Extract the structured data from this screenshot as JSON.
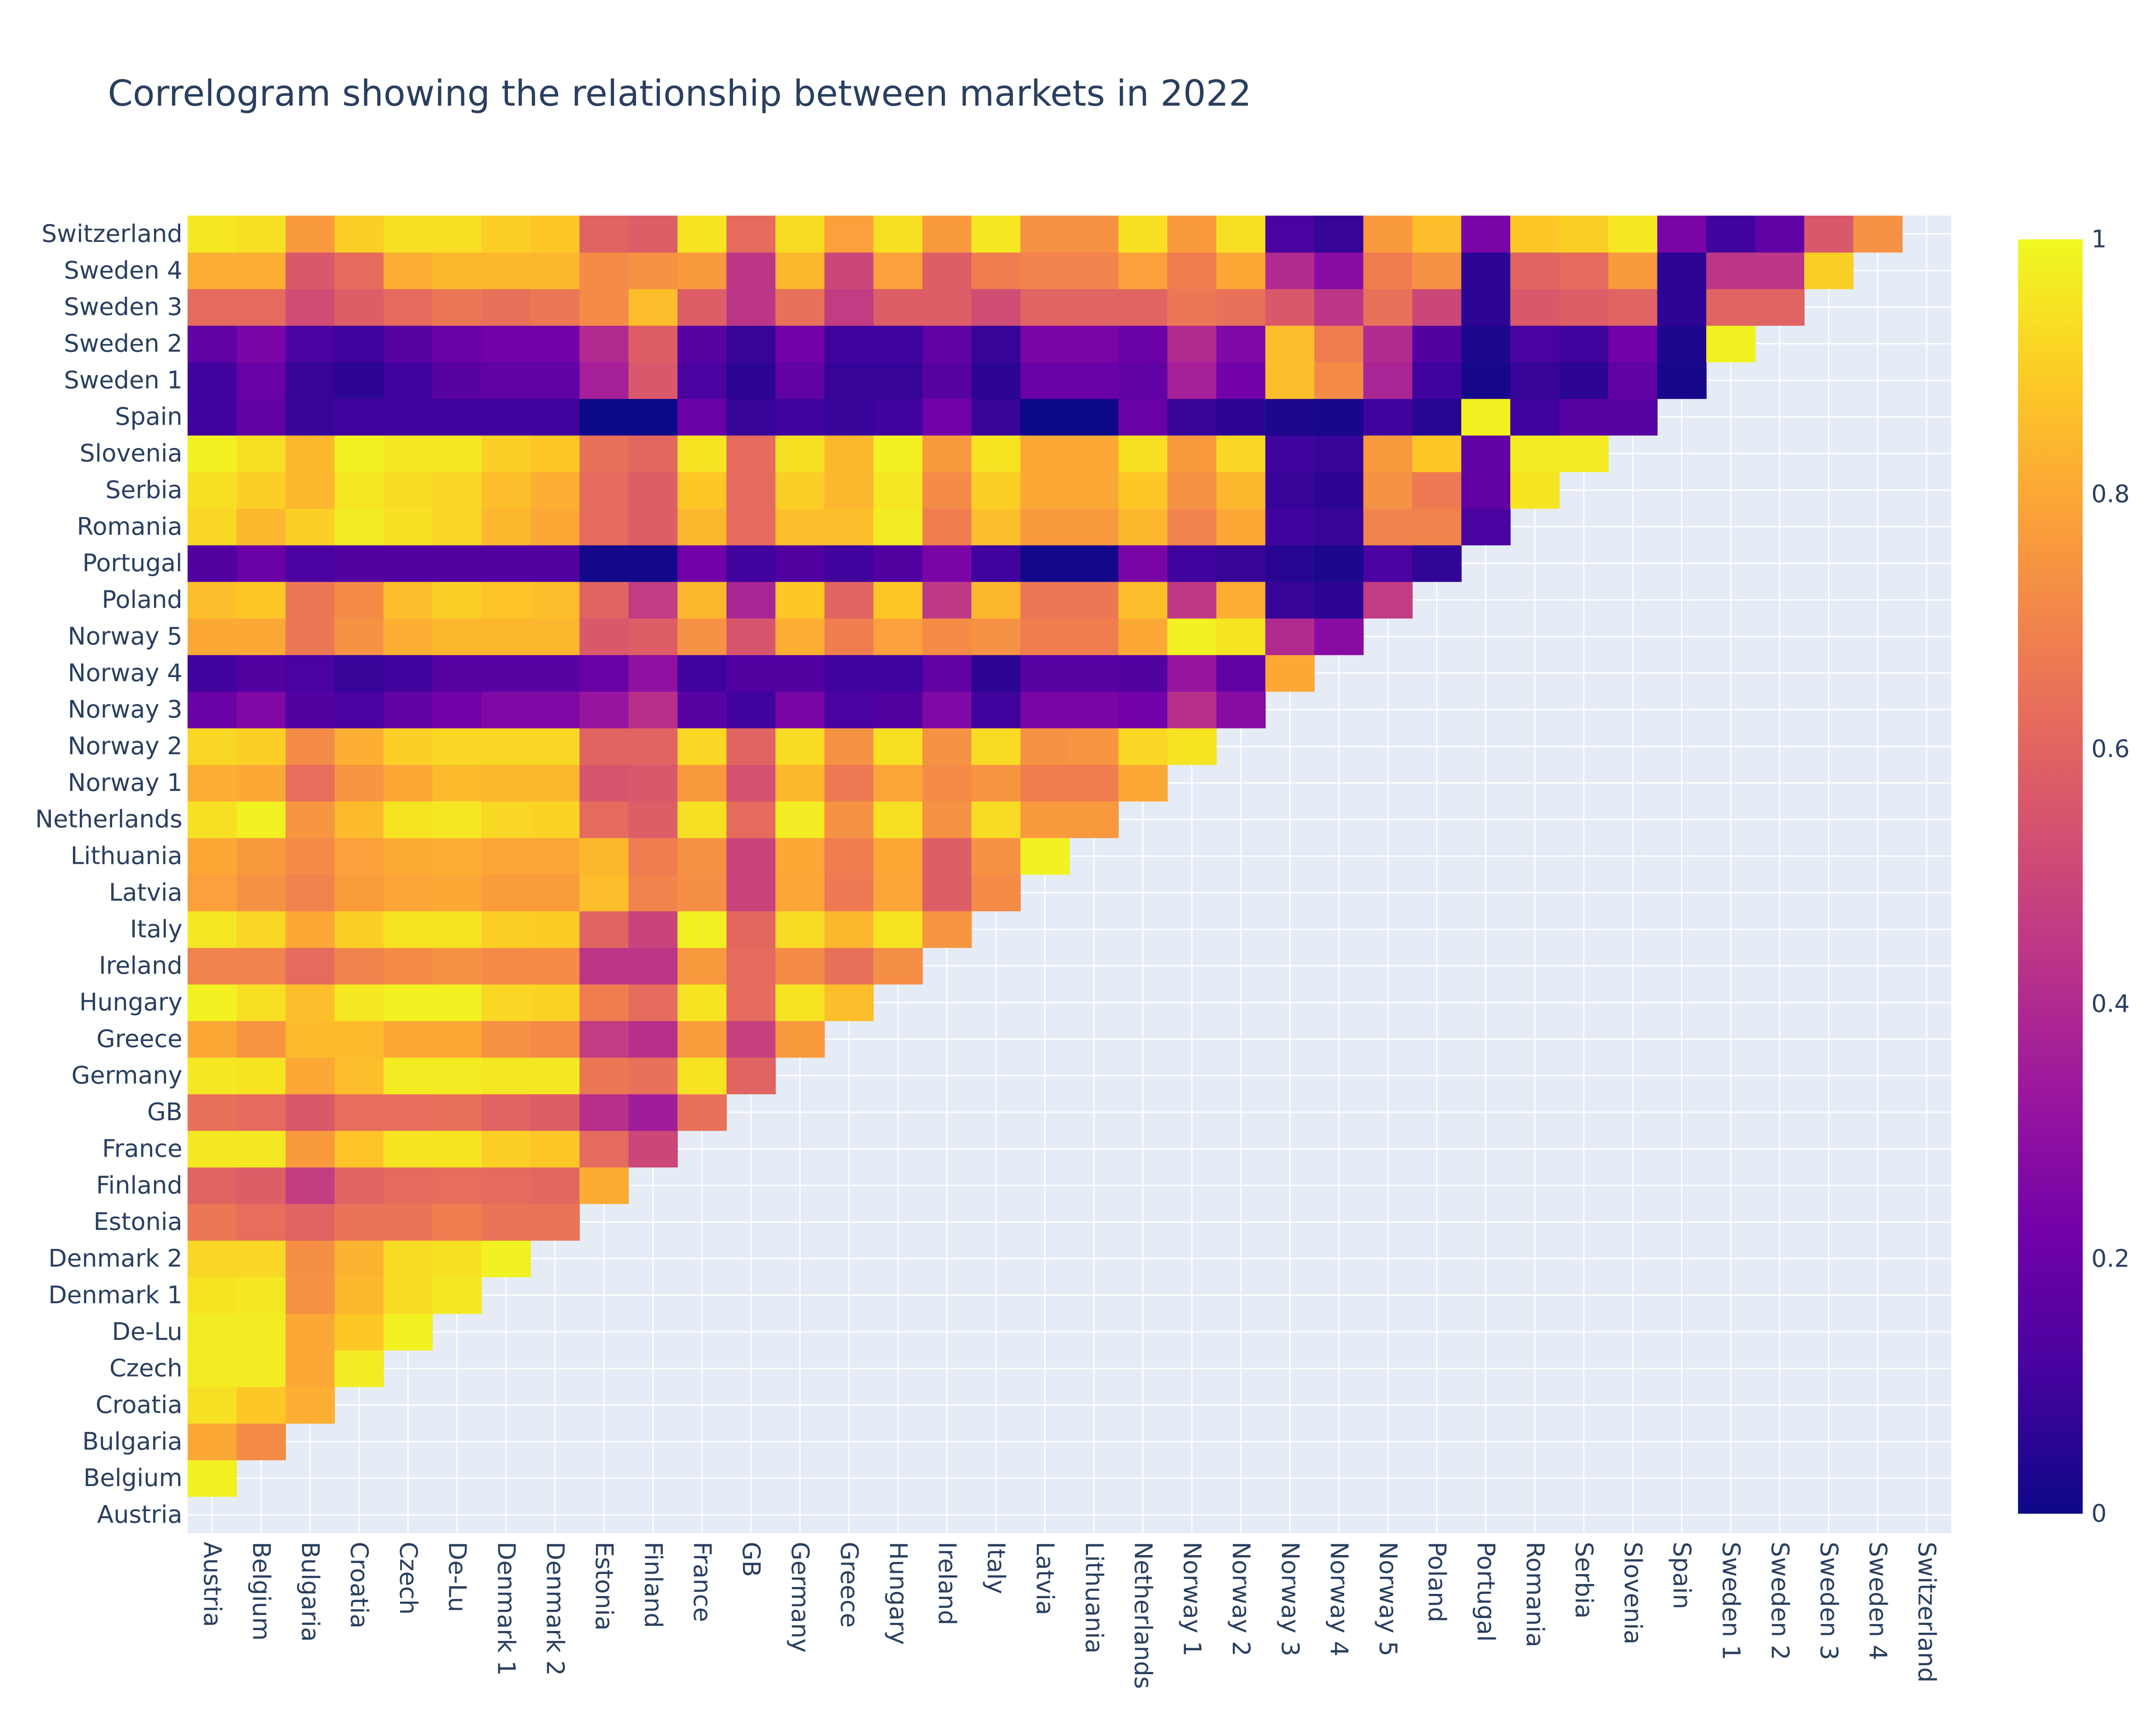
{
  "chart_data": {
    "type": "heatmap",
    "title": "Correlogram showing the relationship between markets in 2022",
    "categories": [
      "Austria",
      "Belgium",
      "Bulgaria",
      "Croatia",
      "Czech",
      "De-Lu",
      "Denmark 1",
      "Denmark 2",
      "Estonia",
      "Finland",
      "France",
      "GB",
      "Germany",
      "Greece",
      "Hungary",
      "Ireland",
      "Italy",
      "Latvia",
      "Lithuania",
      "Netherlands",
      "Norway 1",
      "Norway 2",
      "Norway 3",
      "Norway 4",
      "Norway 5",
      "Poland",
      "Portugal",
      "Romania",
      "Serbia",
      "Slovenia",
      "Spain",
      "Sweden 1",
      "Sweden 2",
      "Sweden 3",
      "Sweden 4",
      "Switzerland"
    ],
    "colorscale": "plasma",
    "zlim": [
      0,
      1
    ],
    "colorbar_ticks": [
      0,
      0.2,
      0.4,
      0.6,
      0.8,
      1
    ],
    "colorbar_tick_labels": [
      "0",
      "0.2",
      "0.4",
      "0.6",
      "0.8",
      "1"
    ],
    "lower_triangle_only": true,
    "rows": [
      [],
      [
        0.98
      ],
      [
        0.8,
        0.72
      ],
      [
        0.94,
        0.88,
        0.82
      ],
      [
        0.97,
        0.97,
        0.8,
        0.97
      ],
      [
        0.97,
        0.97,
        0.8,
        0.88,
        0.98
      ],
      [
        0.95,
        0.96,
        0.74,
        0.84,
        0.93,
        0.96
      ],
      [
        0.92,
        0.92,
        0.73,
        0.83,
        0.93,
        0.94,
        0.98
      ],
      [
        0.66,
        0.63,
        0.6,
        0.65,
        0.65,
        0.68,
        0.65,
        0.65
      ],
      [
        0.6,
        0.58,
        0.47,
        0.6,
        0.62,
        0.63,
        0.62,
        0.61,
        0.81
      ],
      [
        0.96,
        0.96,
        0.76,
        0.87,
        0.95,
        0.95,
        0.9,
        0.88,
        0.62,
        0.5
      ],
      [
        0.64,
        0.62,
        0.56,
        0.63,
        0.63,
        0.64,
        0.6,
        0.58,
        0.42,
        0.35,
        0.64
      ],
      [
        0.96,
        0.95,
        0.8,
        0.86,
        0.97,
        0.97,
        0.96,
        0.96,
        0.66,
        0.64,
        0.95,
        0.6
      ],
      [
        0.8,
        0.75,
        0.85,
        0.85,
        0.8,
        0.8,
        0.74,
        0.72,
        0.46,
        0.42,
        0.77,
        0.48,
        0.76
      ],
      [
        0.98,
        0.94,
        0.86,
        0.96,
        0.98,
        0.98,
        0.92,
        0.91,
        0.68,
        0.62,
        0.95,
        0.62,
        0.95,
        0.86
      ],
      [
        0.7,
        0.7,
        0.62,
        0.7,
        0.72,
        0.74,
        0.72,
        0.72,
        0.44,
        0.44,
        0.76,
        0.62,
        0.72,
        0.64,
        0.73
      ],
      [
        0.96,
        0.92,
        0.8,
        0.9,
        0.95,
        0.95,
        0.9,
        0.89,
        0.6,
        0.49,
        0.98,
        0.61,
        0.93,
        0.84,
        0.95,
        0.75
      ],
      [
        0.78,
        0.74,
        0.7,
        0.77,
        0.79,
        0.8,
        0.77,
        0.77,
        0.86,
        0.7,
        0.73,
        0.49,
        0.79,
        0.67,
        0.79,
        0.58,
        0.72
      ],
      [
        0.8,
        0.76,
        0.72,
        0.78,
        0.81,
        0.82,
        0.79,
        0.79,
        0.84,
        0.68,
        0.74,
        0.49,
        0.8,
        0.68,
        0.8,
        0.58,
        0.74,
        0.98
      ],
      [
        0.94,
        0.98,
        0.75,
        0.85,
        0.95,
        0.96,
        0.92,
        0.91,
        0.62,
        0.58,
        0.94,
        0.62,
        0.97,
        0.74,
        0.94,
        0.74,
        0.93,
        0.76,
        0.76
      ],
      [
        0.82,
        0.8,
        0.63,
        0.75,
        0.8,
        0.85,
        0.84,
        0.84,
        0.55,
        0.56,
        0.76,
        0.54,
        0.84,
        0.67,
        0.79,
        0.72,
        0.75,
        0.68,
        0.68,
        0.8
      ],
      [
        0.92,
        0.9,
        0.72,
        0.82,
        0.9,
        0.92,
        0.92,
        0.92,
        0.6,
        0.6,
        0.92,
        0.6,
        0.93,
        0.74,
        0.94,
        0.74,
        0.93,
        0.74,
        0.75,
        0.92,
        0.95
      ],
      [
        0.2,
        0.26,
        0.14,
        0.12,
        0.18,
        0.22,
        0.26,
        0.26,
        0.32,
        0.42,
        0.16,
        0.1,
        0.24,
        0.12,
        0.14,
        0.26,
        0.1,
        0.24,
        0.24,
        0.22,
        0.42,
        0.28
      ],
      [
        0.1,
        0.14,
        0.12,
        0.08,
        0.1,
        0.16,
        0.16,
        0.16,
        0.2,
        0.3,
        0.1,
        0.14,
        0.14,
        0.1,
        0.1,
        0.18,
        0.06,
        0.16,
        0.16,
        0.14,
        0.32,
        0.18,
        0.8
      ],
      [
        0.8,
        0.8,
        0.66,
        0.74,
        0.82,
        0.84,
        0.84,
        0.84,
        0.56,
        0.58,
        0.74,
        0.55,
        0.82,
        0.68,
        0.78,
        0.72,
        0.74,
        0.68,
        0.68,
        0.8,
        0.98,
        0.95,
        0.4,
        0.28
      ],
      [
        0.86,
        0.88,
        0.66,
        0.72,
        0.86,
        0.9,
        0.87,
        0.86,
        0.6,
        0.46,
        0.84,
        0.38,
        0.88,
        0.6,
        0.88,
        0.45,
        0.84,
        0.66,
        0.66,
        0.86,
        0.45,
        0.82,
        0.08,
        0.06,
        0.46
      ],
      [
        0.14,
        0.2,
        0.12,
        0.14,
        0.14,
        0.14,
        0.14,
        0.14,
        0.01,
        0.01,
        0.22,
        0.1,
        0.14,
        0.1,
        0.14,
        0.24,
        0.1,
        0.01,
        0.01,
        0.24,
        0.1,
        0.08,
        0.05,
        0.03,
        0.12,
        0.07
      ],
      [
        0.92,
        0.84,
        0.9,
        0.97,
        0.94,
        0.92,
        0.84,
        0.8,
        0.62,
        0.58,
        0.84,
        0.62,
        0.86,
        0.86,
        0.97,
        0.68,
        0.86,
        0.76,
        0.76,
        0.84,
        0.7,
        0.8,
        0.1,
        0.08,
        0.7,
        0.7,
        0.12
      ],
      [
        0.94,
        0.9,
        0.84,
        0.96,
        0.93,
        0.92,
        0.86,
        0.82,
        0.62,
        0.58,
        0.88,
        0.62,
        0.9,
        0.84,
        0.96,
        0.72,
        0.9,
        0.8,
        0.8,
        0.88,
        0.74,
        0.84,
        0.08,
        0.06,
        0.74,
        0.67,
        0.18,
        0.95
      ],
      [
        0.98,
        0.94,
        0.84,
        0.98,
        0.96,
        0.96,
        0.9,
        0.88,
        0.64,
        0.61,
        0.95,
        0.62,
        0.94,
        0.84,
        0.98,
        0.76,
        0.95,
        0.8,
        0.8,
        0.94,
        0.76,
        0.92,
        0.1,
        0.08,
        0.76,
        0.88,
        0.18,
        0.97,
        0.97
      ],
      [
        0.1,
        0.18,
        0.08,
        0.1,
        0.1,
        0.1,
        0.1,
        0.1,
        0.0,
        0.0,
        0.2,
        0.08,
        0.1,
        0.08,
        0.1,
        0.22,
        0.08,
        0.0,
        0.0,
        0.2,
        0.08,
        0.06,
        0.03,
        0.02,
        0.1,
        0.05,
        0.98,
        0.1,
        0.16,
        0.16
      ],
      [
        0.1,
        0.2,
        0.08,
        0.06,
        0.1,
        0.16,
        0.18,
        0.18,
        0.36,
        0.56,
        0.12,
        0.06,
        0.18,
        0.08,
        0.08,
        0.16,
        0.06,
        0.2,
        0.2,
        0.18,
        0.36,
        0.22,
        0.86,
        0.72,
        0.38,
        0.1,
        0.02,
        0.08,
        0.06,
        0.18,
        0.02
      ],
      [
        0.18,
        0.24,
        0.12,
        0.1,
        0.16,
        0.2,
        0.22,
        0.22,
        0.4,
        0.58,
        0.16,
        0.08,
        0.22,
        0.1,
        0.1,
        0.18,
        0.08,
        0.24,
        0.24,
        0.2,
        0.4,
        0.26,
        0.86,
        0.68,
        0.4,
        0.14,
        0.03,
        0.12,
        0.1,
        0.22,
        0.03,
        0.98
      ],
      [
        0.62,
        0.62,
        0.52,
        0.58,
        0.62,
        0.66,
        0.64,
        0.66,
        0.72,
        0.86,
        0.58,
        0.44,
        0.64,
        0.46,
        0.58,
        0.58,
        0.52,
        0.6,
        0.6,
        0.6,
        0.66,
        0.64,
        0.56,
        0.44,
        0.64,
        0.5,
        0.06,
        0.56,
        0.58,
        0.6,
        0.06,
        0.6,
        0.6
      ],
      [
        0.82,
        0.82,
        0.56,
        0.62,
        0.82,
        0.84,
        0.84,
        0.84,
        0.72,
        0.74,
        0.76,
        0.44,
        0.84,
        0.5,
        0.78,
        0.58,
        0.68,
        0.7,
        0.7,
        0.78,
        0.68,
        0.8,
        0.4,
        0.28,
        0.68,
        0.74,
        0.06,
        0.6,
        0.62,
        0.76,
        0.06,
        0.44,
        0.44,
        0.9
      ],
      [
        0.96,
        0.94,
        0.76,
        0.9,
        0.94,
        0.94,
        0.9,
        0.88,
        0.6,
        0.58,
        0.95,
        0.62,
        0.93,
        0.78,
        0.94,
        0.76,
        0.96,
        0.74,
        0.74,
        0.94,
        0.76,
        0.94,
        0.12,
        0.08,
        0.76,
        0.86,
        0.24,
        0.88,
        0.9,
        0.96,
        0.24,
        0.1,
        0.18,
        0.56,
        0.74
      ]
    ]
  }
}
